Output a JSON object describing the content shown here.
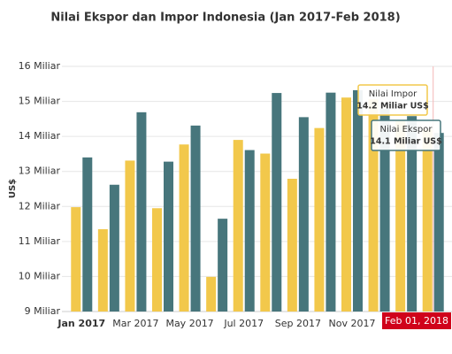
{
  "chart_data": {
    "type": "bar",
    "title": "Nilai Ekspor dan Impor Indonesia (Jan 2017-Feb 2018)",
    "y_label": "US$",
    "categories": [
      "Jan 2017",
      null,
      "Mar 2017",
      null,
      "May 2017",
      null,
      "Jul 2017",
      null,
      "Sep 2017",
      null,
      "Nov 2017",
      null,
      null,
      null
    ],
    "series": [
      {
        "name": "Nilai Impor",
        "color": "#f2c84b",
        "values": [
          11.98,
          11.35,
          13.31,
          11.95,
          13.77,
          9.99,
          13.9,
          13.51,
          12.79,
          14.24,
          15.11,
          15.06,
          14.46,
          14.2
        ],
        "value_labels": [
          null,
          null,
          null,
          null,
          null,
          null,
          null,
          null,
          null,
          null,
          null,
          null,
          null,
          "14.2 Miliar US$"
        ]
      },
      {
        "name": "Nilai Ekspor",
        "color": "#47767c",
        "values": [
          13.4,
          12.62,
          14.69,
          13.28,
          14.31,
          11.65,
          13.61,
          15.24,
          14.55,
          15.25,
          15.32,
          14.79,
          14.58,
          14.1
        ],
        "value_labels": [
          null,
          null,
          null,
          null,
          null,
          null,
          null,
          null,
          null,
          null,
          null,
          null,
          null,
          "14.1 Miliar US$"
        ]
      }
    ],
    "crosshair_label": "Feb 01, 2018",
    "ylim": [
      9,
      16
    ],
    "yticks": [
      {
        "value": 9,
        "label": "9 Miliar"
      },
      {
        "value": 10,
        "label": "10 Miliar"
      },
      {
        "value": 11,
        "label": "11 Miliar"
      },
      {
        "value": 12,
        "label": "12 Miliar"
      },
      {
        "value": 13,
        "label": "13 Miliar"
      },
      {
        "value": 14,
        "label": "14 Miliar"
      },
      {
        "value": 15,
        "label": "15 Miliar"
      },
      {
        "value": 16,
        "label": "16 Miliar"
      }
    ],
    "grid": true
  }
}
